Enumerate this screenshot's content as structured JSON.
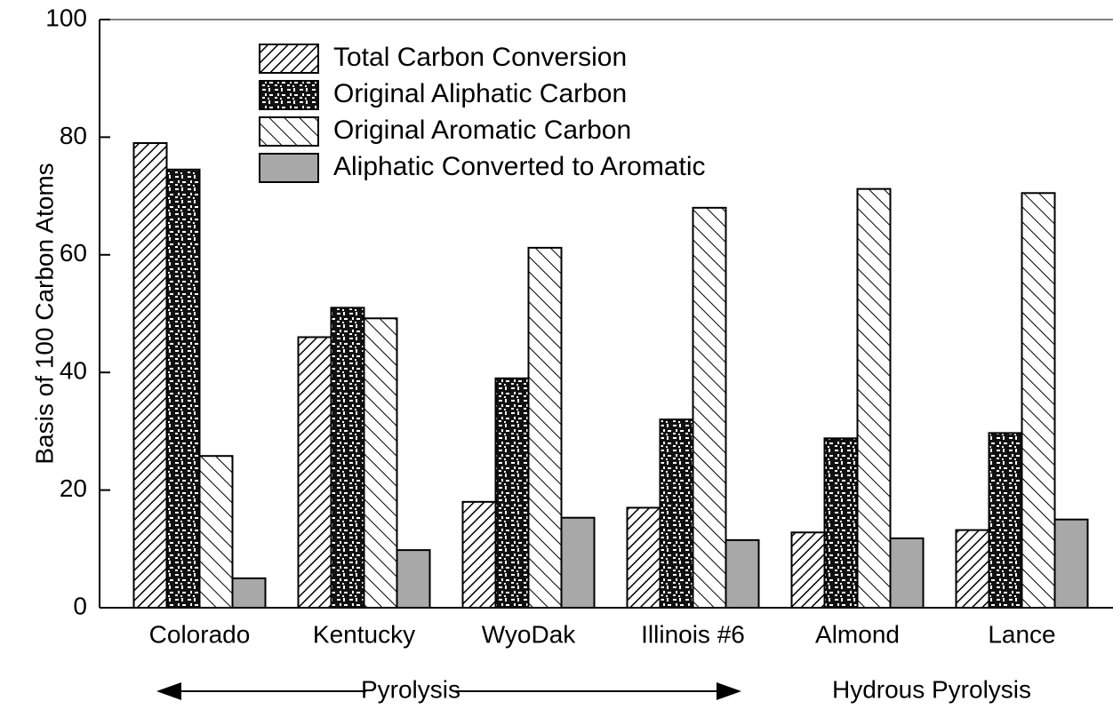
{
  "chart_data": {
    "type": "bar",
    "y_label": "Basis of 100 Carbon Atoms",
    "categories": [
      "Colorado",
      "Kentucky",
      "WyoDak",
      "Illinois #6",
      "Almond",
      "Lance"
    ],
    "series": [
      {
        "name": "Total Carbon Conversion",
        "color": "#000000",
        "pattern": "hatch-forward",
        "values": [
          79,
          46,
          18,
          17,
          12.8,
          13.2
        ]
      },
      {
        "name": "Original Aliphatic Carbon",
        "color": "#000000",
        "pattern": "speckle",
        "values": [
          74.5,
          51,
          39,
          32,
          28.8,
          29.7
        ]
      },
      {
        "name": "Original Aromatic Carbon",
        "color": "#000000",
        "pattern": "hatch-back",
        "values": [
          25.8,
          49.2,
          61.2,
          68,
          71.2,
          70.5
        ]
      },
      {
        "name": "Aliphatic Converted to Aromatic",
        "color": "#a8a8a8",
        "pattern": "solid",
        "values": [
          5,
          9.8,
          15.3,
          11.5,
          11.8,
          15
        ]
      }
    ],
    "ylim": [
      0,
      100
    ],
    "yticks": [
      0,
      20,
      40,
      60,
      80,
      100
    ],
    "grid": false,
    "legend": "upper left",
    "annotations": [
      "Pyrolysis",
      "Hydrous Pyrolysis"
    ]
  }
}
